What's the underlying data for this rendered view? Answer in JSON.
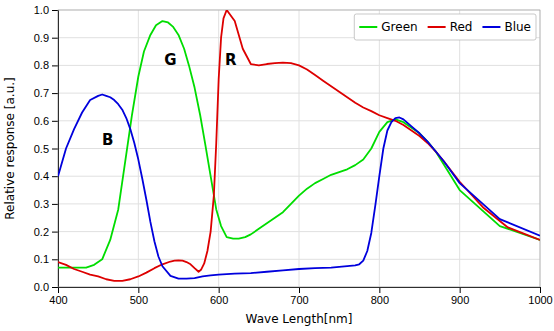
{
  "chart_data": {
    "type": "line",
    "xlabel": "Wave Length[nm]",
    "ylabel": "Relative response [a.u.]",
    "xlim": [
      400,
      1000
    ],
    "ylim": [
      0.0,
      1.0
    ],
    "xticks": [
      400,
      500,
      600,
      700,
      800,
      900,
      1000
    ],
    "yticks": [
      {
        "value": 0.0,
        "label": "0.0"
      },
      0.1,
      0.2,
      0.3,
      0.4,
      0.5,
      0.6,
      0.7,
      0.8,
      0.9,
      {
        "value": 1.0,
        "label": "1.0"
      }
    ],
    "grid": true,
    "legend": "upper right",
    "annotations": [
      {
        "text": "G",
        "x": 540,
        "y": 0.82,
        "color": "black"
      },
      {
        "text": "R",
        "x": 615,
        "y": 0.82,
        "color": "black"
      },
      {
        "text": "B",
        "x": 462,
        "y": 0.53,
        "color": "black"
      }
    ],
    "series": [
      {
        "name": "Green",
        "color": "#00dd00",
        "x": [
          400,
          415,
          425,
          435,
          445,
          455,
          465,
          475,
          485,
          492,
          500,
          507,
          515,
          522,
          530,
          537,
          543,
          550,
          557,
          563,
          570,
          577,
          583,
          590,
          597,
          603,
          610,
          618,
          625,
          633,
          640,
          650,
          660,
          670,
          680,
          690,
          700,
          710,
          720,
          730,
          740,
          750,
          760,
          770,
          780,
          790,
          800,
          810,
          820,
          830,
          840,
          850,
          860,
          870,
          900,
          950,
          1000
        ],
        "values": [
          0.07,
          0.07,
          0.07,
          0.07,
          0.08,
          0.1,
          0.17,
          0.28,
          0.48,
          0.62,
          0.76,
          0.85,
          0.91,
          0.945,
          0.96,
          0.955,
          0.94,
          0.91,
          0.86,
          0.8,
          0.72,
          0.62,
          0.52,
          0.4,
          0.28,
          0.22,
          0.18,
          0.175,
          0.175,
          0.18,
          0.19,
          0.21,
          0.23,
          0.25,
          0.27,
          0.3,
          0.33,
          0.355,
          0.375,
          0.39,
          0.405,
          0.415,
          0.425,
          0.44,
          0.46,
          0.5,
          0.56,
          0.595,
          0.605,
          0.595,
          0.575,
          0.555,
          0.525,
          0.49,
          0.35,
          0.22,
          0.17
        ]
      },
      {
        "name": "Red",
        "color": "#dd0000",
        "x": [
          400,
          410,
          420,
          430,
          440,
          450,
          460,
          470,
          480,
          490,
          500,
          510,
          520,
          530,
          540,
          545,
          550,
          555,
          560,
          565,
          570,
          575,
          578,
          582,
          586,
          590,
          594,
          597,
          600,
          603,
          606,
          610,
          620,
          630,
          640,
          650,
          660,
          670,
          680,
          690,
          700,
          710,
          720,
          730,
          740,
          750,
          760,
          770,
          780,
          790,
          800,
          810,
          820,
          830,
          840,
          850,
          860,
          870,
          880,
          900,
          930,
          960,
          1000
        ],
        "values": [
          0.09,
          0.08,
          0.065,
          0.055,
          0.045,
          0.038,
          0.028,
          0.022,
          0.022,
          0.028,
          0.038,
          0.052,
          0.068,
          0.082,
          0.092,
          0.095,
          0.096,
          0.095,
          0.09,
          0.082,
          0.068,
          0.055,
          0.062,
          0.085,
          0.13,
          0.2,
          0.33,
          0.52,
          0.75,
          0.9,
          0.97,
          1.0,
          0.96,
          0.86,
          0.805,
          0.8,
          0.805,
          0.808,
          0.81,
          0.808,
          0.8,
          0.785,
          0.765,
          0.745,
          0.725,
          0.705,
          0.685,
          0.665,
          0.648,
          0.635,
          0.62,
          0.61,
          0.6,
          0.585,
          0.565,
          0.545,
          0.52,
          0.49,
          0.455,
          0.38,
          0.285,
          0.215,
          0.17
        ]
      },
      {
        "name": "Blue",
        "color": "#0000dd",
        "x": [
          400,
          410,
          420,
          430,
          440,
          450,
          455,
          460,
          465,
          470,
          475,
          480,
          485,
          490,
          495,
          500,
          505,
          510,
          515,
          520,
          525,
          530,
          540,
          550,
          560,
          570,
          580,
          590,
          600,
          620,
          640,
          660,
          680,
          700,
          720,
          740,
          760,
          770,
          775,
          780,
          785,
          790,
          795,
          800,
          805,
          810,
          815,
          820,
          825,
          830,
          840,
          850,
          860,
          870,
          880,
          900,
          950,
          1000
        ],
        "values": [
          0.4,
          0.5,
          0.57,
          0.63,
          0.675,
          0.69,
          0.695,
          0.69,
          0.685,
          0.675,
          0.66,
          0.64,
          0.61,
          0.57,
          0.52,
          0.46,
          0.39,
          0.315,
          0.235,
          0.165,
          0.11,
          0.075,
          0.04,
          0.03,
          0.03,
          0.032,
          0.038,
          0.042,
          0.045,
          0.048,
          0.05,
          0.055,
          0.06,
          0.065,
          0.068,
          0.07,
          0.075,
          0.078,
          0.082,
          0.095,
          0.13,
          0.195,
          0.295,
          0.4,
          0.5,
          0.565,
          0.595,
          0.61,
          0.612,
          0.605,
          0.58,
          0.555,
          0.525,
          0.49,
          0.455,
          0.375,
          0.245,
          0.185
        ]
      }
    ]
  }
}
